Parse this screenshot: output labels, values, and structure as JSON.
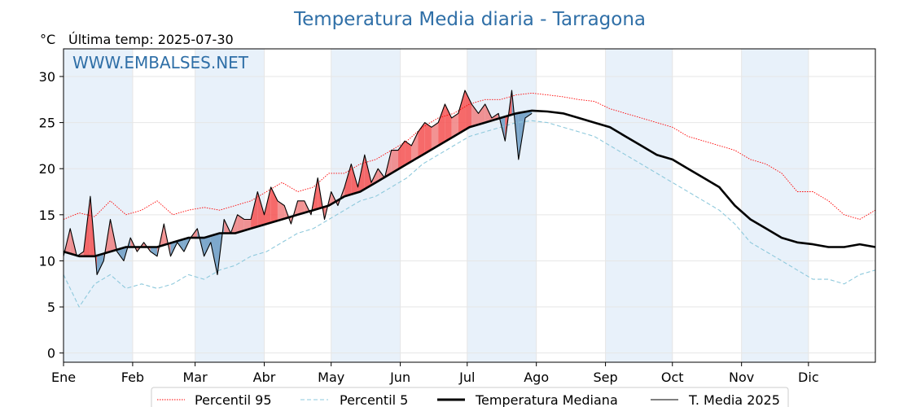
{
  "page": {
    "title": "Temperatura Media diaria - Tarragona",
    "unit": "°C",
    "last_temp": "Última temp: 2025-07-30",
    "watermark": "WWW.EMBALSES.NET"
  },
  "colors": {
    "p95": "#ff0000",
    "p5": "#8ec9dc",
    "median": "#000000",
    "current": "#000000",
    "above_fill": "#f08080",
    "above_fill_strong": "#f45050",
    "below_fill": "#6a9bc3",
    "band": "#e8f1fa",
    "title": "#2f6fa7"
  },
  "chart_data": {
    "type": "line",
    "title": "Temperatura Media diaria - Tarragona",
    "ylabel": "°C",
    "ylim": [
      -1,
      33
    ],
    "yticks": [
      0,
      5,
      10,
      15,
      20,
      25,
      30
    ],
    "grid": true,
    "legend_position": "bottom",
    "month_labels": [
      "Ene",
      "Feb",
      "Mar",
      "Abr",
      "May",
      "Jun",
      "Jul",
      "Ago",
      "Sep",
      "Oct",
      "Nov",
      "Dic"
    ],
    "month_start_days": [
      1,
      32,
      60,
      91,
      121,
      152,
      182,
      213,
      244,
      274,
      305,
      335
    ],
    "x_range_days": [
      1,
      365
    ],
    "series": [
      {
        "name": "Percentil 95",
        "style": "dotted",
        "x": [
          1,
          8,
          15,
          22,
          29,
          36,
          43,
          50,
          57,
          64,
          71,
          78,
          85,
          92,
          99,
          106,
          113,
          120,
          127,
          134,
          141,
          148,
          155,
          162,
          169,
          176,
          183,
          190,
          197,
          204,
          211,
          218,
          225,
          232,
          239,
          246,
          253,
          260,
          267,
          274,
          281,
          288,
          295,
          302,
          309,
          316,
          323,
          330,
          337,
          344,
          351,
          358,
          365
        ],
        "y": [
          14.5,
          15.2,
          14.8,
          16.5,
          15.0,
          15.5,
          16.5,
          15.0,
          15.5,
          15.8,
          15.5,
          16.0,
          16.5,
          17.5,
          18.5,
          17.5,
          18.0,
          19.5,
          19.5,
          20.5,
          21.0,
          22.0,
          23.0,
          24.5,
          25.5,
          26.0,
          27.0,
          27.5,
          27.5,
          28.0,
          28.2,
          28.0,
          27.8,
          27.5,
          27.3,
          26.5,
          26.0,
          25.5,
          25.0,
          24.5,
          23.5,
          23.0,
          22.5,
          22.0,
          21.0,
          20.5,
          19.5,
          17.5,
          17.5,
          16.5,
          15.0,
          14.5,
          15.5
        ]
      },
      {
        "name": "Percentil 5",
        "style": "dashed",
        "x": [
          1,
          8,
          15,
          22,
          29,
          36,
          43,
          50,
          57,
          64,
          71,
          78,
          85,
          92,
          99,
          106,
          113,
          120,
          127,
          134,
          141,
          148,
          155,
          162,
          169,
          176,
          183,
          190,
          197,
          204,
          211,
          218,
          225,
          232,
          239,
          246,
          253,
          260,
          267,
          274,
          281,
          288,
          295,
          302,
          309,
          316,
          323,
          330,
          337,
          344,
          351,
          358,
          365
        ],
        "y": [
          8.5,
          5.0,
          7.5,
          8.5,
          7.0,
          7.5,
          7.0,
          7.5,
          8.5,
          8.0,
          9.0,
          9.5,
          10.5,
          11.0,
          12.0,
          13.0,
          13.5,
          14.5,
          15.5,
          16.5,
          17.0,
          18.0,
          19.0,
          20.5,
          21.5,
          22.5,
          23.5,
          24.0,
          24.5,
          25.0,
          25.2,
          25.0,
          24.5,
          24.0,
          23.5,
          22.5,
          21.5,
          20.5,
          19.5,
          18.5,
          17.5,
          16.5,
          15.5,
          14.0,
          12.0,
          11.0,
          10.0,
          9.0,
          8.0,
          8.0,
          7.5,
          8.5,
          9.0
        ]
      },
      {
        "name": "Temperatura Mediana",
        "style": "bold",
        "x": [
          1,
          8,
          15,
          22,
          29,
          36,
          43,
          50,
          57,
          64,
          71,
          78,
          85,
          92,
          99,
          106,
          113,
          120,
          127,
          134,
          141,
          148,
          155,
          162,
          169,
          176,
          183,
          190,
          197,
          204,
          211,
          218,
          225,
          232,
          239,
          246,
          253,
          260,
          267,
          274,
          281,
          288,
          295,
          302,
          309,
          316,
          323,
          330,
          337,
          344,
          351,
          358,
          365
        ],
        "y": [
          11.0,
          10.5,
          10.5,
          11.0,
          11.5,
          11.5,
          11.5,
          12.0,
          12.5,
          12.5,
          13.0,
          13.0,
          13.5,
          14.0,
          14.5,
          15.0,
          15.5,
          16.0,
          17.0,
          17.5,
          18.5,
          19.5,
          20.5,
          21.5,
          22.5,
          23.5,
          24.5,
          25.0,
          25.5,
          26.0,
          26.3,
          26.2,
          26.0,
          25.5,
          25.0,
          24.5,
          23.5,
          22.5,
          21.5,
          21.0,
          20.0,
          19.0,
          18.0,
          16.0,
          14.5,
          13.5,
          12.5,
          12.0,
          11.8,
          11.5,
          11.5,
          11.8,
          11.5
        ]
      },
      {
        "name": "T. Media 2025",
        "style": "solid",
        "x": [
          1,
          4,
          7,
          10,
          13,
          16,
          19,
          22,
          25,
          28,
          31,
          34,
          37,
          40,
          43,
          46,
          49,
          52,
          55,
          58,
          61,
          64,
          67,
          70,
          73,
          76,
          79,
          82,
          85,
          88,
          91,
          94,
          97,
          100,
          103,
          106,
          109,
          112,
          115,
          118,
          121,
          124,
          127,
          130,
          133,
          136,
          139,
          142,
          145,
          148,
          151,
          154,
          157,
          160,
          163,
          166,
          169,
          172,
          175,
          178,
          181,
          184,
          187,
          190,
          193,
          196,
          199,
          202,
          205,
          208,
          211
        ],
        "y": [
          10.5,
          13.5,
          10.5,
          11.0,
          17.0,
          8.5,
          10.0,
          14.5,
          11.0,
          10.0,
          12.5,
          11.0,
          12.0,
          11.0,
          10.5,
          14.0,
          10.5,
          12.0,
          11.0,
          12.5,
          13.5,
          10.5,
          12.0,
          8.5,
          14.5,
          13.0,
          15.0,
          14.5,
          14.5,
          17.5,
          15.0,
          18.0,
          16.5,
          16.0,
          14.0,
          16.5,
          16.5,
          15.0,
          19.0,
          14.5,
          17.5,
          16.0,
          18.0,
          20.5,
          18.0,
          21.5,
          18.5,
          20.0,
          19.0,
          22.0,
          22.0,
          23.0,
          22.5,
          24.0,
          25.0,
          24.5,
          25.0,
          27.0,
          25.5,
          26.0,
          28.5,
          27.0,
          26.0,
          27.0,
          25.5,
          26.0,
          23.0,
          28.5,
          21.0,
          25.5,
          26.0
        ]
      }
    ],
    "legend": [
      "Percentil 95",
      "Percentil 5",
      "Temperatura Mediana",
      "T. Media 2025"
    ]
  }
}
